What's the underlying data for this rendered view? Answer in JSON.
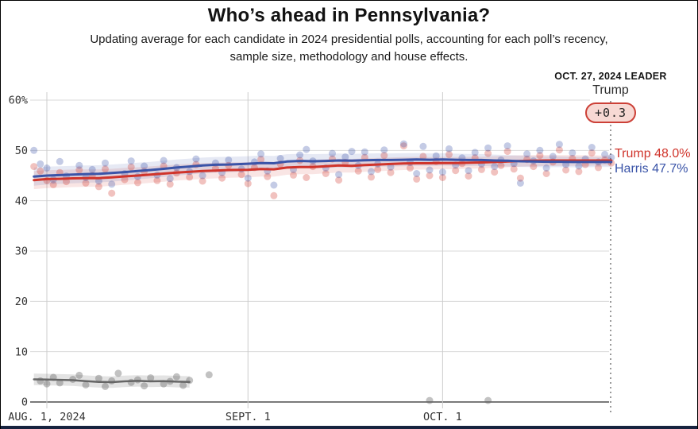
{
  "header": {
    "title": "Who’s ahead in Pennsylvania?",
    "subtitle_line1": "Updating average for each candidate in 2024 presidential polls, accounting for each poll’s recency,",
    "subtitle_line2": "sample size, methodology and house effects."
  },
  "leader": {
    "heading": "OCT. 27, 2024 LEADER",
    "name": "Trump",
    "margin": "+0.3"
  },
  "end_labels": {
    "trump": "Trump 48.0%",
    "harris": "Harris 47.7%"
  },
  "colors": {
    "trump": "#d0342b",
    "harris": "#3a54a8",
    "gray": "#666666",
    "grid": "#d9d9d9",
    "date_grid": "#cccccc",
    "axis": "#7a7a7a",
    "dotted": "#9a9a9a",
    "pill_bg": "#f7d9d4",
    "pill_border": "#cc4037"
  },
  "chart_data": {
    "type": "line",
    "title": "Who’s ahead in Pennsylvania?",
    "x_axis": {
      "unit": "days since Aug 1, 2024",
      "domain_days": [
        -2,
        87
      ],
      "ticks": [
        {
          "day": 0,
          "label": "AUG. 1, 2024"
        },
        {
          "day": 31,
          "label": "SEPT. 1"
        },
        {
          "day": 61,
          "label": "OCT. 1"
        }
      ]
    },
    "y_axis": {
      "range": [
        0,
        62
      ],
      "ticks": [
        {
          "value": 60,
          "label": "60%"
        },
        {
          "value": 50,
          "label": "50"
        },
        {
          "value": 40,
          "label": "40"
        },
        {
          "value": 30,
          "label": "30"
        },
        {
          "value": 20,
          "label": "20"
        },
        {
          "value": 10,
          "label": "10"
        },
        {
          "value": 0,
          "label": "0"
        }
      ]
    },
    "leader_annotation": {
      "date": "OCT. 27, 2024",
      "leader": "Trump",
      "margin": "+0.3"
    },
    "series": [
      {
        "name": "Trump",
        "color_key": "trump",
        "final_value": 48.0,
        "line_width": 3,
        "band_halfwidth": [
          1.8,
          1.0
        ],
        "band_opacity": 0.13,
        "dot_opacity": 0.3,
        "line": [
          [
            -2,
            44.1
          ],
          [
            0,
            44.3
          ],
          [
            2,
            44.35
          ],
          [
            4,
            44.45
          ],
          [
            6,
            44.5
          ],
          [
            8,
            44.5
          ],
          [
            10,
            44.65
          ],
          [
            12,
            44.85
          ],
          [
            14,
            45.0
          ],
          [
            16,
            45.2
          ],
          [
            18,
            45.4
          ],
          [
            20,
            45.6
          ],
          [
            22,
            45.75
          ],
          [
            24,
            45.9
          ],
          [
            26,
            46.0
          ],
          [
            28,
            46.1
          ],
          [
            31,
            46.15
          ],
          [
            33,
            46.3
          ],
          [
            35,
            46.25
          ],
          [
            37,
            46.6
          ],
          [
            39,
            46.7
          ],
          [
            41,
            46.7
          ],
          [
            43,
            46.85
          ],
          [
            45,
            47.0
          ],
          [
            47,
            46.95
          ],
          [
            49,
            47.1
          ],
          [
            51,
            47.2
          ],
          [
            53,
            47.3
          ],
          [
            55,
            47.4
          ],
          [
            57,
            47.45
          ],
          [
            59,
            47.45
          ],
          [
            61,
            47.5
          ],
          [
            63,
            47.5
          ],
          [
            65,
            47.55
          ],
          [
            67,
            47.6
          ],
          [
            69,
            47.7
          ],
          [
            71,
            47.8
          ],
          [
            73,
            47.9
          ],
          [
            75,
            47.95
          ],
          [
            77,
            48.0
          ],
          [
            79,
            48.0
          ],
          [
            81,
            48.0
          ],
          [
            83,
            48.0
          ],
          [
            85,
            48.0
          ],
          [
            87,
            48.0
          ]
        ],
        "polls": [
          [
            -2,
            46.8
          ],
          [
            -1,
            45.9
          ],
          [
            0,
            44.0
          ],
          [
            1,
            43.2
          ],
          [
            2,
            45.6
          ],
          [
            3,
            43.8
          ],
          [
            5,
            46.1
          ],
          [
            6,
            43.5
          ],
          [
            7,
            45.0
          ],
          [
            8,
            42.8
          ],
          [
            9,
            46.3
          ],
          [
            10,
            41.5
          ],
          [
            12,
            44.2
          ],
          [
            13,
            46.7
          ],
          [
            14,
            43.6
          ],
          [
            15,
            45.8
          ],
          [
            17,
            44.0
          ],
          [
            18,
            46.9
          ],
          [
            19,
            43.3
          ],
          [
            20,
            45.5
          ],
          [
            22,
            44.7
          ],
          [
            23,
            47.2
          ],
          [
            24,
            43.9
          ],
          [
            26,
            46.4
          ],
          [
            27,
            44.5
          ],
          [
            28,
            47.0
          ],
          [
            30,
            45.2
          ],
          [
            31,
            43.4
          ],
          [
            32,
            46.6
          ],
          [
            33,
            48.2
          ],
          [
            34,
            44.8
          ],
          [
            35,
            41.0
          ],
          [
            36,
            47.3
          ],
          [
            38,
            45.1
          ],
          [
            39,
            48.0
          ],
          [
            40,
            44.6
          ],
          [
            41,
            46.8
          ],
          [
            43,
            45.4
          ],
          [
            44,
            48.3
          ],
          [
            45,
            44.1
          ],
          [
            46,
            47.6
          ],
          [
            48,
            45.9
          ],
          [
            49,
            48.6
          ],
          [
            50,
            44.7
          ],
          [
            51,
            46.2
          ],
          [
            52,
            49.0
          ],
          [
            53,
            45.6
          ],
          [
            55,
            50.9
          ],
          [
            56,
            46.5
          ],
          [
            57,
            44.3
          ],
          [
            58,
            48.8
          ],
          [
            59,
            45.0
          ],
          [
            60,
            47.8
          ],
          [
            61,
            44.6
          ],
          [
            62,
            49.2
          ],
          [
            63,
            46.0
          ],
          [
            64,
            47.4
          ],
          [
            65,
            44.9
          ],
          [
            66,
            48.5
          ],
          [
            67,
            46.2
          ],
          [
            68,
            49.4
          ],
          [
            69,
            45.7
          ],
          [
            70,
            47.0
          ],
          [
            71,
            49.8
          ],
          [
            72,
            46.3
          ],
          [
            73,
            44.5
          ],
          [
            74,
            48.2
          ],
          [
            75,
            46.8
          ],
          [
            76,
            49.0
          ],
          [
            77,
            45.4
          ],
          [
            78,
            47.7
          ],
          [
            79,
            50.1
          ],
          [
            80,
            46.1
          ],
          [
            81,
            48.4
          ],
          [
            82,
            45.8
          ],
          [
            83,
            47.2
          ],
          [
            84,
            49.5
          ],
          [
            85,
            46.6
          ],
          [
            86,
            48.1
          ],
          [
            87,
            47.5
          ]
        ]
      },
      {
        "name": "Harris",
        "color_key": "harris",
        "final_value": 47.7,
        "line_width": 3,
        "band_halfwidth": [
          1.8,
          1.0
        ],
        "band_opacity": 0.13,
        "dot_opacity": 0.3,
        "line": [
          [
            -2,
            44.8
          ],
          [
            0,
            45.0
          ],
          [
            2,
            45.1
          ],
          [
            4,
            45.2
          ],
          [
            6,
            45.3
          ],
          [
            8,
            45.35
          ],
          [
            10,
            45.5
          ],
          [
            12,
            45.7
          ],
          [
            14,
            45.9
          ],
          [
            16,
            46.1
          ],
          [
            18,
            46.35
          ],
          [
            20,
            46.6
          ],
          [
            22,
            46.8
          ],
          [
            24,
            47.0
          ],
          [
            26,
            47.15
          ],
          [
            28,
            47.2
          ],
          [
            31,
            47.35
          ],
          [
            33,
            47.5
          ],
          [
            35,
            47.45
          ],
          [
            37,
            47.8
          ],
          [
            39,
            47.9
          ],
          [
            41,
            47.85
          ],
          [
            43,
            47.9
          ],
          [
            45,
            48.0
          ],
          [
            47,
            47.95
          ],
          [
            49,
            48.05
          ],
          [
            51,
            48.1
          ],
          [
            53,
            48.1
          ],
          [
            55,
            48.15
          ],
          [
            57,
            48.2
          ],
          [
            59,
            48.15
          ],
          [
            61,
            48.2
          ],
          [
            63,
            48.15
          ],
          [
            65,
            48.1
          ],
          [
            67,
            48.1
          ],
          [
            69,
            48.0
          ],
          [
            71,
            47.95
          ],
          [
            73,
            47.85
          ],
          [
            75,
            47.8
          ],
          [
            77,
            47.75
          ],
          [
            79,
            47.75
          ],
          [
            81,
            47.7
          ],
          [
            83,
            47.7
          ],
          [
            85,
            47.7
          ],
          [
            87,
            47.7
          ]
        ],
        "polls": [
          [
            -2,
            50.0
          ],
          [
            -1,
            47.3
          ],
          [
            0,
            46.5
          ],
          [
            1,
            44.2
          ],
          [
            2,
            47.8
          ],
          [
            3,
            44.9
          ],
          [
            5,
            47.0
          ],
          [
            6,
            44.6
          ],
          [
            7,
            46.2
          ],
          [
            8,
            43.9
          ],
          [
            9,
            47.5
          ],
          [
            10,
            43.3
          ],
          [
            12,
            45.4
          ],
          [
            13,
            47.9
          ],
          [
            14,
            44.8
          ],
          [
            15,
            46.9
          ],
          [
            17,
            45.1
          ],
          [
            18,
            48.0
          ],
          [
            19,
            44.4
          ],
          [
            20,
            46.6
          ],
          [
            22,
            45.8
          ],
          [
            23,
            48.3
          ],
          [
            24,
            45.0
          ],
          [
            26,
            47.5
          ],
          [
            27,
            45.6
          ],
          [
            28,
            48.1
          ],
          [
            30,
            46.3
          ],
          [
            31,
            44.5
          ],
          [
            32,
            47.7
          ],
          [
            33,
            49.3
          ],
          [
            34,
            45.9
          ],
          [
            35,
            43.1
          ],
          [
            36,
            48.4
          ],
          [
            38,
            46.2
          ],
          [
            39,
            49.1
          ],
          [
            40,
            50.2
          ],
          [
            41,
            47.9
          ],
          [
            43,
            46.5
          ],
          [
            44,
            49.4
          ],
          [
            45,
            45.2
          ],
          [
            46,
            48.7
          ],
          [
            47,
            49.8
          ],
          [
            48,
            47.0
          ],
          [
            49,
            49.7
          ],
          [
            50,
            45.8
          ],
          [
            51,
            47.3
          ],
          [
            52,
            50.1
          ],
          [
            53,
            46.7
          ],
          [
            55,
            51.3
          ],
          [
            56,
            47.6
          ],
          [
            57,
            45.4
          ],
          [
            58,
            50.8
          ],
          [
            59,
            46.1
          ],
          [
            60,
            48.9
          ],
          [
            61,
            45.7
          ],
          [
            62,
            50.3
          ],
          [
            63,
            47.1
          ],
          [
            64,
            48.5
          ],
          [
            65,
            46.0
          ],
          [
            66,
            49.6
          ],
          [
            67,
            47.3
          ],
          [
            68,
            50.5
          ],
          [
            69,
            46.8
          ],
          [
            70,
            48.1
          ],
          [
            71,
            50.9
          ],
          [
            72,
            47.4
          ],
          [
            73,
            43.5
          ],
          [
            74,
            49.3
          ],
          [
            75,
            47.9
          ],
          [
            76,
            50.0
          ],
          [
            77,
            46.5
          ],
          [
            78,
            48.8
          ],
          [
            79,
            51.2
          ],
          [
            80,
            47.2
          ],
          [
            81,
            49.5
          ],
          [
            82,
            46.9
          ],
          [
            83,
            48.3
          ],
          [
            84,
            50.6
          ],
          [
            85,
            47.7
          ],
          [
            86,
            49.2
          ],
          [
            87,
            48.6
          ]
        ]
      },
      {
        "name": "gray-series",
        "color_key": "gray",
        "final_value": null,
        "line_width": 2.5,
        "band_halfwidth": [
          1.15,
          1.1
        ],
        "band_opacity": 0.18,
        "dot_opacity": 0.4,
        "line": [
          [
            -2,
            4.5
          ],
          [
            0,
            4.45
          ],
          [
            2,
            4.4
          ],
          [
            4,
            4.35
          ],
          [
            6,
            4.15
          ],
          [
            8,
            4.0
          ],
          [
            10,
            3.95
          ],
          [
            12,
            4.1
          ],
          [
            14,
            4.2
          ],
          [
            16,
            4.1
          ],
          [
            18,
            4.15
          ],
          [
            20,
            4.05
          ],
          [
            22,
            4.0
          ]
        ],
        "polls": [
          [
            -1,
            4.2
          ],
          [
            0,
            3.6
          ],
          [
            1,
            4.9
          ],
          [
            2,
            3.8
          ],
          [
            4,
            4.5
          ],
          [
            5,
            5.3
          ],
          [
            6,
            3.4
          ],
          [
            8,
            4.7
          ],
          [
            9,
            3.1
          ],
          [
            10,
            4.2
          ],
          [
            11,
            5.7
          ],
          [
            13,
            3.9
          ],
          [
            14,
            4.4
          ],
          [
            15,
            3.2
          ],
          [
            16,
            4.8
          ],
          [
            18,
            3.6
          ],
          [
            19,
            4.1
          ],
          [
            20,
            5.0
          ],
          [
            21,
            3.3
          ],
          [
            22,
            4.3
          ],
          [
            25,
            5.4
          ],
          [
            59,
            0.3
          ],
          [
            68,
            0.3
          ]
        ]
      }
    ]
  }
}
